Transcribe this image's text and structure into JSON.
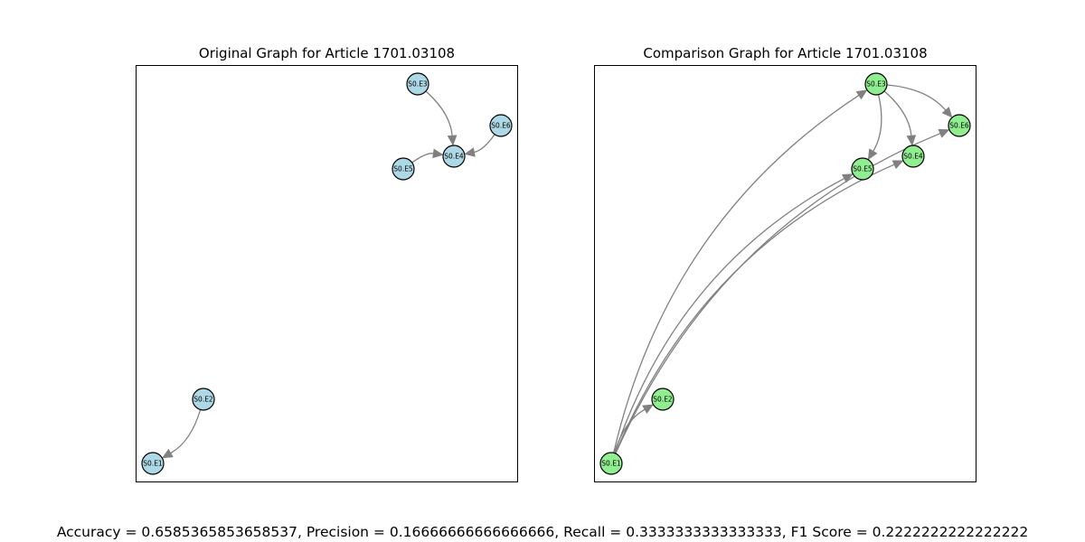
{
  "panels": [
    {
      "title": "Original Graph for Article 1701.03108",
      "node_color": "#add8e6",
      "nodes": [
        "S0.E1",
        "S0.E2",
        "S0.E3",
        "S0.E4",
        "S0.E5",
        "S0.E6"
      ],
      "edges": [
        {
          "from": "S0.E3",
          "to": "S0.E4"
        },
        {
          "from": "S0.E6",
          "to": "S0.E4"
        },
        {
          "from": "S0.E5",
          "to": "S0.E4"
        },
        {
          "from": "S0.E2",
          "to": "S0.E1"
        }
      ]
    },
    {
      "title": "Comparison Graph for Article 1701.03108",
      "node_color": "#90ee90",
      "nodes": [
        "S0.E1",
        "S0.E2",
        "S0.E3",
        "S0.E4",
        "S0.E5",
        "S0.E6"
      ],
      "edges": [
        {
          "from": "S0.E1",
          "to": "S0.E2"
        },
        {
          "from": "S0.E1",
          "to": "S0.E3"
        },
        {
          "from": "S0.E1",
          "to": "S0.E5"
        },
        {
          "from": "S0.E1",
          "to": "S0.E4"
        },
        {
          "from": "S0.E1",
          "to": "S0.E6"
        },
        {
          "from": "S0.E3",
          "to": "S0.E5"
        },
        {
          "from": "S0.E3",
          "to": "S0.E4"
        },
        {
          "from": "S0.E3",
          "to": "S0.E6"
        }
      ]
    }
  ],
  "metrics_text": "Accuracy = 0.6585365853658537, Precision = 0.16666666666666666, Recall = 0.3333333333333333, F1 Score = 0.2222222222222222"
}
